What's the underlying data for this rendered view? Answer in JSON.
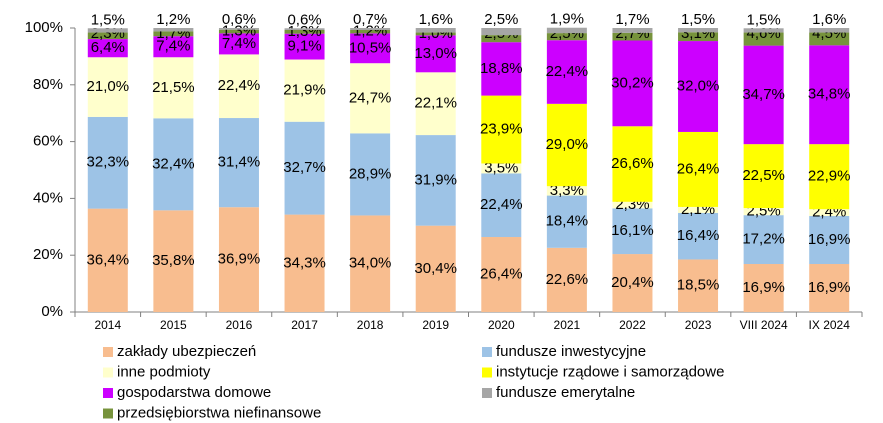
{
  "chart_data": {
    "type": "stacked_bar",
    "categories": [
      "2014",
      "2015",
      "2016",
      "2017",
      "2018",
      "2019",
      "2020",
      "2021",
      "2022",
      "2023",
      "VIII 2024",
      "IX 2024"
    ],
    "series": [
      {
        "name": "zakłady ubezpieczeń",
        "color": "#f8bd8f",
        "values": [
          36.4,
          35.8,
          36.9,
          34.3,
          34.0,
          30.4,
          26.4,
          22.6,
          20.4,
          18.5,
          16.9,
          16.9
        ],
        "value_labels": [
          "36,4%",
          "35,8%",
          "36,9%",
          "34,3%",
          "34,0%",
          "30,4%",
          "26,4%",
          "22,6%",
          "20,4%",
          "18,5%",
          "16,9%",
          "16,9%"
        ]
      },
      {
        "name": "fundusze inwestycyjne",
        "color": "#9dc3e6",
        "values": [
          32.3,
          32.4,
          31.4,
          32.7,
          28.9,
          31.9,
          22.4,
          18.4,
          16.1,
          16.4,
          17.2,
          16.9
        ],
        "value_labels": [
          "32,3%",
          "32,4%",
          "31,4%",
          "32,7%",
          "28,9%",
          "31,9%",
          "22,4%",
          "18,4%",
          "16,1%",
          "16,4%",
          "17,2%",
          "16,9%"
        ]
      },
      {
        "name": "inne podmioty",
        "color": "#ffffcc",
        "values": [
          21.0,
          21.5,
          22.4,
          21.9,
          24.7,
          22.1,
          3.5,
          3.3,
          2.3,
          2.1,
          2.5,
          2.4
        ],
        "value_labels": [
          "21,0%",
          "21,5%",
          "22,4%",
          "21,9%",
          "24,7%",
          "22,1%",
          "3,5%",
          "3,3%",
          "2,3%",
          "2,1%",
          "2,5%",
          "2,4%"
        ]
      },
      {
        "name": "instytucje rządowe i samorządowe",
        "color": "#ffff00",
        "values": [
          null,
          null,
          null,
          null,
          null,
          null,
          23.9,
          29.0,
          26.6,
          26.4,
          22.5,
          22.9
        ],
        "value_labels": [
          null,
          null,
          null,
          null,
          null,
          null,
          "23,9%",
          "29,0%",
          "26,6%",
          "26,4%",
          "22,5%",
          "22,9%"
        ]
      },
      {
        "name": "gospodarstwa domowe",
        "color": "#cc00ff",
        "values": [
          6.4,
          7.4,
          7.4,
          9.1,
          10.5,
          13.0,
          18.8,
          22.4,
          30.2,
          32.0,
          34.7,
          34.8
        ],
        "value_labels": [
          "6,4%",
          "7,4%",
          "7,4%",
          "9,1%",
          "10,5%",
          "13,0%",
          "18,8%",
          "22,4%",
          "30,2%",
          "32,0%",
          "34,7%",
          "34,8%"
        ]
      },
      {
        "name": "przedsiębiorstwa niefinansowe",
        "color": "#77933c",
        "values": [
          2.3,
          1.7,
          1.3,
          1.3,
          1.2,
          1.0,
          2.5,
          2.5,
          2.7,
          3.1,
          4.6,
          4.5
        ],
        "value_labels": [
          "2,3%",
          "1,7%",
          "1,3%",
          "1,3%",
          "1,2%",
          "1,0%",
          "2,5%",
          "2,5%",
          "2,7%",
          "3,1%",
          "4,6%",
          "4,5%"
        ]
      },
      {
        "name": "fundusze emerytalne",
        "color": "#a6a6a6",
        "values": [
          1.5,
          1.2,
          0.6,
          0.6,
          0.7,
          1.6,
          2.5,
          1.9,
          1.7,
          1.5,
          1.5,
          1.6
        ],
        "value_labels": [
          "1,5%",
          "1,2%",
          "0,6%",
          "0,6%",
          "0,7%",
          "1,6%",
          "2,5%",
          "1,9%",
          "1,7%",
          "1,5%",
          "1,5%",
          "1,6%"
        ]
      }
    ],
    "ylim": [
      0,
      100
    ],
    "yticks": [
      {
        "value": 0,
        "label": "0%"
      },
      {
        "value": 20,
        "label": "20%"
      },
      {
        "value": 40,
        "label": "40%"
      },
      {
        "value": 60,
        "label": "60%"
      },
      {
        "value": 80,
        "label": "80%"
      },
      {
        "value": 100,
        "label": "100%"
      }
    ]
  }
}
